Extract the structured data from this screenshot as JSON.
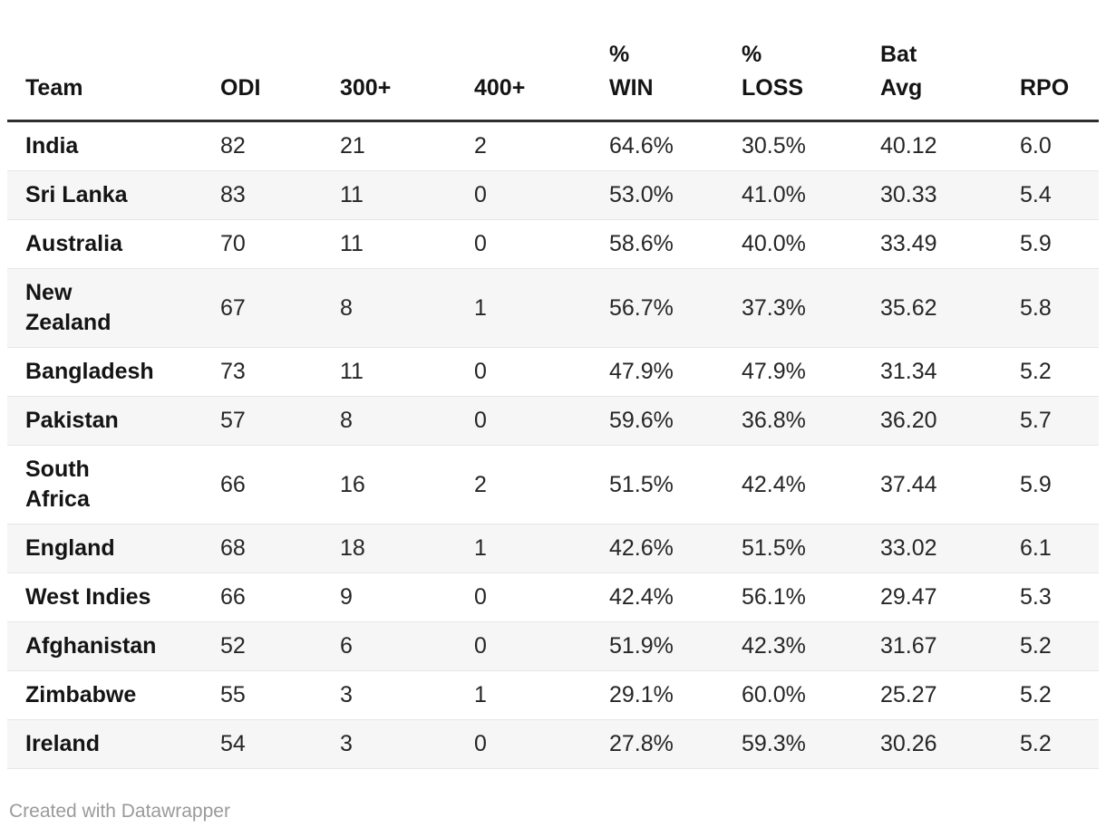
{
  "colors": {
    "stripe_row": "#f6f6f6",
    "header_rule": "#2e2e2e",
    "row_rule": "#e6e6e6",
    "body_text": "#1a1a1a",
    "footer_text": "#9a9a9a"
  },
  "table": {
    "columns": [
      {
        "label": "Team"
      },
      {
        "label": "ODI"
      },
      {
        "label": "300+"
      },
      {
        "label": "400+"
      },
      {
        "label": "%\nWIN"
      },
      {
        "label": "%\nLOSS"
      },
      {
        "label": "Bat\nAvg"
      },
      {
        "label": "RPO"
      }
    ],
    "rows": [
      [
        "India",
        "82",
        "21",
        "2",
        "64.6%",
        "30.5%",
        "40.12",
        "6.0"
      ],
      [
        "Sri Lanka",
        "83",
        "11",
        "0",
        "53.0%",
        "41.0%",
        "30.33",
        "5.4"
      ],
      [
        "Australia",
        "70",
        "11",
        "0",
        "58.6%",
        "40.0%",
        "33.49",
        "5.9"
      ],
      [
        "New\nZealand",
        "67",
        "8",
        "1",
        "56.7%",
        "37.3%",
        "35.62",
        "5.8"
      ],
      [
        "Bangladesh",
        "73",
        "11",
        "0",
        "47.9%",
        "47.9%",
        "31.34",
        "5.2"
      ],
      [
        "Pakistan",
        "57",
        "8",
        "0",
        "59.6%",
        "36.8%",
        "36.20",
        "5.7"
      ],
      [
        "South\nAfrica",
        "66",
        "16",
        "2",
        "51.5%",
        "42.4%",
        "37.44",
        "5.9"
      ],
      [
        "England",
        "68",
        "18",
        "1",
        "42.6%",
        "51.5%",
        "33.02",
        "6.1"
      ],
      [
        "West Indies",
        "66",
        "9",
        "0",
        "42.4%",
        "56.1%",
        "29.47",
        "5.3"
      ],
      [
        "Afghanistan",
        "52",
        "6",
        "0",
        "51.9%",
        "42.3%",
        "31.67",
        "5.2"
      ],
      [
        "Zimbabwe",
        "55",
        "3",
        "1",
        "29.1%",
        "60.0%",
        "25.27",
        "5.2"
      ],
      [
        "Ireland",
        "54",
        "3",
        "0",
        "27.8%",
        "59.3%",
        "30.26",
        "5.2"
      ]
    ]
  },
  "chart_data": {
    "type": "table",
    "title": "",
    "columns": [
      "Team",
      "ODI",
      "300+",
      "400+",
      "% WIN",
      "% LOSS",
      "Bat Avg",
      "RPO"
    ],
    "rows": [
      {
        "team": "India",
        "odi": 82,
        "c300": 21,
        "c400": 2,
        "win_pct": 64.6,
        "loss_pct": 30.5,
        "bat_avg": 40.12,
        "rpo": 6.0
      },
      {
        "team": "Sri Lanka",
        "odi": 83,
        "c300": 11,
        "c400": 0,
        "win_pct": 53.0,
        "loss_pct": 41.0,
        "bat_avg": 30.33,
        "rpo": 5.4
      },
      {
        "team": "Australia",
        "odi": 70,
        "c300": 11,
        "c400": 0,
        "win_pct": 58.6,
        "loss_pct": 40.0,
        "bat_avg": 33.49,
        "rpo": 5.9
      },
      {
        "team": "New Zealand",
        "odi": 67,
        "c300": 8,
        "c400": 1,
        "win_pct": 56.7,
        "loss_pct": 37.3,
        "bat_avg": 35.62,
        "rpo": 5.8
      },
      {
        "team": "Bangladesh",
        "odi": 73,
        "c300": 11,
        "c400": 0,
        "win_pct": 47.9,
        "loss_pct": 47.9,
        "bat_avg": 31.34,
        "rpo": 5.2
      },
      {
        "team": "Pakistan",
        "odi": 57,
        "c300": 8,
        "c400": 0,
        "win_pct": 59.6,
        "loss_pct": 36.8,
        "bat_avg": 36.2,
        "rpo": 5.7
      },
      {
        "team": "South Africa",
        "odi": 66,
        "c300": 16,
        "c400": 2,
        "win_pct": 51.5,
        "loss_pct": 42.4,
        "bat_avg": 37.44,
        "rpo": 5.9
      },
      {
        "team": "England",
        "odi": 68,
        "c300": 18,
        "c400": 1,
        "win_pct": 42.6,
        "loss_pct": 51.5,
        "bat_avg": 33.02,
        "rpo": 6.1
      },
      {
        "team": "West Indies",
        "odi": 66,
        "c300": 9,
        "c400": 0,
        "win_pct": 42.4,
        "loss_pct": 56.1,
        "bat_avg": 29.47,
        "rpo": 5.3
      },
      {
        "team": "Afghanistan",
        "odi": 52,
        "c300": 6,
        "c400": 0,
        "win_pct": 51.9,
        "loss_pct": 42.3,
        "bat_avg": 31.67,
        "rpo": 5.2
      },
      {
        "team": "Zimbabwe",
        "odi": 55,
        "c300": 3,
        "c400": 1,
        "win_pct": 29.1,
        "loss_pct": 60.0,
        "bat_avg": 25.27,
        "rpo": 5.2
      },
      {
        "team": "Ireland",
        "odi": 54,
        "c300": 3,
        "c400": 0,
        "win_pct": 27.8,
        "loss_pct": 59.3,
        "bat_avg": 30.26,
        "rpo": 5.2
      }
    ],
    "layout": {
      "striped_rows": true,
      "header_rule": true,
      "alignment": "left"
    }
  },
  "footer": {
    "credit": "Created with Datawrapper"
  }
}
